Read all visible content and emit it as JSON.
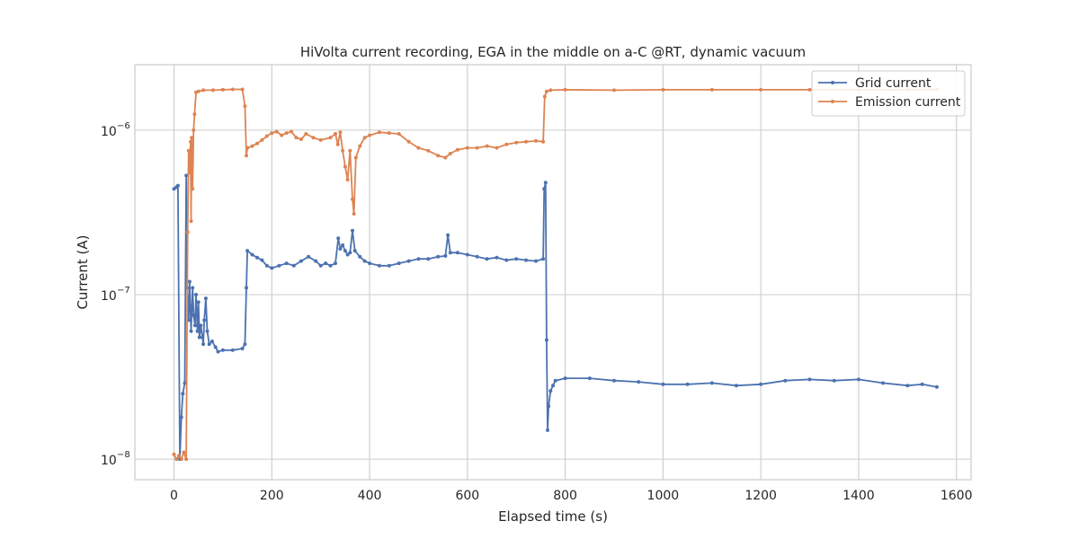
{
  "chart_data": {
    "type": "line",
    "title": "HiVolta current recording, EGA in the middle on a-C @RT, dynamic vacuum",
    "xlabel": "Elapsed time (s)",
    "ylabel": "Current (A)",
    "xlim": [
      -80,
      1630
    ],
    "ylim": [
      7.5e-09,
      2.5e-06
    ],
    "yscale": "log",
    "grid": true,
    "legend_position": "top-right",
    "x_ticks": [
      0,
      200,
      400,
      600,
      800,
      1000,
      1200,
      1400,
      1600
    ],
    "x_tick_labels": [
      "0",
      "200",
      "400",
      "600",
      "800",
      "1000",
      "1200",
      "1400",
      "1600"
    ],
    "y_ticks": [
      {
        "value": 1e-08,
        "base": "10",
        "exp": "−8"
      },
      {
        "value": 1e-07,
        "base": "10",
        "exp": "−7"
      },
      {
        "value": 1e-06,
        "base": "10",
        "exp": "−6"
      }
    ],
    "series": [
      {
        "name": "Grid current",
        "color": "#4c72b0",
        "points": [
          [
            0,
            4.4e-07
          ],
          [
            5,
            4.5e-07
          ],
          [
            8,
            4.6e-07
          ],
          [
            12,
            1e-08
          ],
          [
            15,
            1.8e-08
          ],
          [
            18,
            2.5e-08
          ],
          [
            22,
            2.9e-08
          ],
          [
            25,
            5.3e-07
          ],
          [
            27,
            1.1e-07
          ],
          [
            30,
            7e-08
          ],
          [
            32,
            1.2e-07
          ],
          [
            35,
            6e-08
          ],
          [
            38,
            1.1e-07
          ],
          [
            40,
            7.5e-08
          ],
          [
            43,
            6.5e-08
          ],
          [
            45,
            1e-07
          ],
          [
            48,
            6e-08
          ],
          [
            50,
            9e-08
          ],
          [
            52,
            5.5e-08
          ],
          [
            55,
            6.5e-08
          ],
          [
            58,
            5.5e-08
          ],
          [
            60,
            5e-08
          ],
          [
            62,
            7e-08
          ],
          [
            65,
            9.5e-08
          ],
          [
            68,
            6e-08
          ],
          [
            72,
            5e-08
          ],
          [
            78,
            5.2e-08
          ],
          [
            85,
            4.8e-08
          ],
          [
            90,
            4.5e-08
          ],
          [
            100,
            4.6e-08
          ],
          [
            120,
            4.6e-08
          ],
          [
            140,
            4.7e-08
          ],
          [
            145,
            5e-08
          ],
          [
            148,
            1.1e-07
          ],
          [
            150,
            1.85e-07
          ],
          [
            160,
            1.75e-07
          ],
          [
            170,
            1.68e-07
          ],
          [
            180,
            1.62e-07
          ],
          [
            190,
            1.5e-07
          ],
          [
            200,
            1.45e-07
          ],
          [
            215,
            1.5e-07
          ],
          [
            230,
            1.55e-07
          ],
          [
            245,
            1.5e-07
          ],
          [
            260,
            1.6e-07
          ],
          [
            275,
            1.7e-07
          ],
          [
            290,
            1.6e-07
          ],
          [
            300,
            1.5e-07
          ],
          [
            310,
            1.55e-07
          ],
          [
            320,
            1.5e-07
          ],
          [
            330,
            1.55e-07
          ],
          [
            336,
            2.2e-07
          ],
          [
            340,
            1.9e-07
          ],
          [
            345,
            2e-07
          ],
          [
            350,
            1.85e-07
          ],
          [
            355,
            1.75e-07
          ],
          [
            360,
            1.8e-07
          ],
          [
            365,
            2.45e-07
          ],
          [
            370,
            1.85e-07
          ],
          [
            380,
            1.7e-07
          ],
          [
            390,
            1.6e-07
          ],
          [
            400,
            1.55e-07
          ],
          [
            420,
            1.5e-07
          ],
          [
            440,
            1.5e-07
          ],
          [
            460,
            1.55e-07
          ],
          [
            480,
            1.6e-07
          ],
          [
            500,
            1.65e-07
          ],
          [
            520,
            1.65e-07
          ],
          [
            540,
            1.7e-07
          ],
          [
            555,
            1.72e-07
          ],
          [
            560,
            2.3e-07
          ],
          [
            565,
            1.8e-07
          ],
          [
            580,
            1.8e-07
          ],
          [
            600,
            1.75e-07
          ],
          [
            620,
            1.7e-07
          ],
          [
            640,
            1.65e-07
          ],
          [
            660,
            1.68e-07
          ],
          [
            680,
            1.62e-07
          ],
          [
            700,
            1.65e-07
          ],
          [
            720,
            1.62e-07
          ],
          [
            740,
            1.6e-07
          ],
          [
            755,
            1.65e-07
          ],
          [
            757,
            4.4e-07
          ],
          [
            760,
            4.8e-07
          ],
          [
            762,
            5.3e-08
          ],
          [
            764,
            1.5e-08
          ],
          [
            766,
            2.1e-08
          ],
          [
            770,
            2.6e-08
          ],
          [
            775,
            2.8e-08
          ],
          [
            780,
            3e-08
          ],
          [
            800,
            3.1e-08
          ],
          [
            850,
            3.1e-08
          ],
          [
            900,
            3e-08
          ],
          [
            950,
            2.95e-08
          ],
          [
            1000,
            2.85e-08
          ],
          [
            1050,
            2.85e-08
          ],
          [
            1100,
            2.9e-08
          ],
          [
            1150,
            2.8e-08
          ],
          [
            1200,
            2.85e-08
          ],
          [
            1250,
            3e-08
          ],
          [
            1300,
            3.05e-08
          ],
          [
            1350,
            3e-08
          ],
          [
            1400,
            3.05e-08
          ],
          [
            1450,
            2.9e-08
          ],
          [
            1500,
            2.8e-08
          ],
          [
            1530,
            2.85e-08
          ],
          [
            1560,
            2.75e-08
          ]
        ]
      },
      {
        "name": "Emission current",
        "color": "#dd8452",
        "points": [
          [
            0,
            1.07e-08
          ],
          [
            5,
            1e-08
          ],
          [
            10,
            1.05e-08
          ],
          [
            15,
            1e-08
          ],
          [
            20,
            1.1e-08
          ],
          [
            25,
            1e-08
          ],
          [
            28,
            2.4e-07
          ],
          [
            30,
            7.5e-07
          ],
          [
            32,
            5.5e-07
          ],
          [
            34,
            8.5e-07
          ],
          [
            35,
            2.8e-07
          ],
          [
            36,
            9e-07
          ],
          [
            38,
            4.4e-07
          ],
          [
            40,
            1e-06
          ],
          [
            42,
            1.25e-06
          ],
          [
            45,
            1.7e-06
          ],
          [
            50,
            1.72e-06
          ],
          [
            60,
            1.75e-06
          ],
          [
            80,
            1.75e-06
          ],
          [
            100,
            1.76e-06
          ],
          [
            120,
            1.77e-06
          ],
          [
            140,
            1.77e-06
          ],
          [
            145,
            1.4e-06
          ],
          [
            148,
            7e-07
          ],
          [
            150,
            7.8e-07
          ],
          [
            160,
            8e-07
          ],
          [
            170,
            8.3e-07
          ],
          [
            180,
            8.7e-07
          ],
          [
            190,
            9.2e-07
          ],
          [
            200,
            9.6e-07
          ],
          [
            210,
            9.8e-07
          ],
          [
            220,
            9.3e-07
          ],
          [
            230,
            9.6e-07
          ],
          [
            240,
            9.8e-07
          ],
          [
            250,
            9e-07
          ],
          [
            260,
            8.8e-07
          ],
          [
            270,
            9.5e-07
          ],
          [
            285,
            9e-07
          ],
          [
            300,
            8.7e-07
          ],
          [
            320,
            9e-07
          ],
          [
            330,
            9.5e-07
          ],
          [
            335,
            8.2e-07
          ],
          [
            340,
            9.7e-07
          ],
          [
            345,
            7.5e-07
          ],
          [
            350,
            6e-07
          ],
          [
            355,
            5e-07
          ],
          [
            360,
            7.5e-07
          ],
          [
            365,
            3.8e-07
          ],
          [
            368,
            3.1e-07
          ],
          [
            372,
            6.8e-07
          ],
          [
            380,
            8e-07
          ],
          [
            390,
            9e-07
          ],
          [
            400,
            9.3e-07
          ],
          [
            420,
            9.7e-07
          ],
          [
            440,
            9.6e-07
          ],
          [
            460,
            9.5e-07
          ],
          [
            480,
            8.5e-07
          ],
          [
            500,
            7.8e-07
          ],
          [
            520,
            7.5e-07
          ],
          [
            540,
            7e-07
          ],
          [
            555,
            6.8e-07
          ],
          [
            565,
            7.2e-07
          ],
          [
            580,
            7.6e-07
          ],
          [
            600,
            7.8e-07
          ],
          [
            620,
            7.8e-07
          ],
          [
            640,
            8e-07
          ],
          [
            660,
            7.8e-07
          ],
          [
            680,
            8.2e-07
          ],
          [
            700,
            8.4e-07
          ],
          [
            720,
            8.5e-07
          ],
          [
            740,
            8.6e-07
          ],
          [
            755,
            8.5e-07
          ],
          [
            758,
            1.6e-06
          ],
          [
            762,
            1.72e-06
          ],
          [
            770,
            1.75e-06
          ],
          [
            800,
            1.76e-06
          ],
          [
            900,
            1.75e-06
          ],
          [
            1000,
            1.76e-06
          ],
          [
            1100,
            1.76e-06
          ],
          [
            1200,
            1.76e-06
          ],
          [
            1300,
            1.76e-06
          ],
          [
            1400,
            1.76e-06
          ],
          [
            1500,
            1.76e-06
          ],
          [
            1560,
            1.77e-06
          ]
        ]
      }
    ]
  }
}
